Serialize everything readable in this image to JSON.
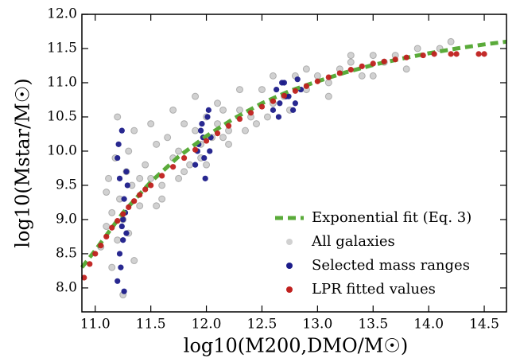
{
  "chart_data": {
    "type": "scatter",
    "x_label": "log10(M200,DMO/M☉)",
    "y_label": "log10(Mstar/M☉)",
    "xlim": [
      10.88,
      14.7
    ],
    "ylim": [
      7.65,
      12.0
    ],
    "xticks": [
      {
        "value": 11.0,
        "label": "11.0"
      },
      11.5,
      {
        "value": 12.0,
        "label": "12.0"
      },
      12.5,
      {
        "value": 13.0,
        "label": "13.0"
      },
      13.5,
      {
        "value": 14.0,
        "label": "14.0"
      },
      14.5
    ],
    "yticks": [
      {
        "value": 8.0,
        "label": "8.0"
      },
      8.5,
      {
        "value": 9.0,
        "label": "9.0"
      },
      9.5,
      {
        "value": 10.0,
        "label": "10.0"
      },
      10.5,
      {
        "value": 11.0,
        "label": "11.0"
      },
      11.5,
      {
        "value": 12.0,
        "label": "12.0"
      }
    ],
    "legend": "lower right",
    "series": [
      {
        "name": "Exponential fit (Eq. 3)",
        "type": "line",
        "color": "#5aab3a",
        "x": [
          10.88,
          11.0,
          11.25,
          11.5,
          11.75,
          12.0,
          12.25,
          12.5,
          12.75,
          13.0,
          13.25,
          13.5,
          13.75,
          14.0,
          14.25,
          14.5,
          14.7
        ],
        "values": [
          8.3,
          8.55,
          9.1,
          9.55,
          9.92,
          10.22,
          10.48,
          10.7,
          10.88,
          11.02,
          11.15,
          11.26,
          11.35,
          11.43,
          11.5,
          11.56,
          11.6
        ]
      },
      {
        "name": "All galaxies",
        "type": "scatter",
        "color": "#9a9a9a",
        "x": [
          11.05,
          11.1,
          11.12,
          11.15,
          11.18,
          11.2,
          11.22,
          11.25,
          11.28,
          11.3,
          11.33,
          11.35,
          11.4,
          11.45,
          11.5,
          11.55,
          11.6,
          11.65,
          11.7,
          11.75,
          11.8,
          11.85,
          11.9,
          11.95,
          12.0,
          12.05,
          12.1,
          12.15,
          12.2,
          12.3,
          12.4,
          12.5,
          12.6,
          12.7,
          12.8,
          12.9,
          13.0,
          13.1,
          13.2,
          13.3,
          13.4,
          13.5,
          13.6,
          13.7,
          13.8,
          13.9,
          14.1,
          14.2,
          11.15,
          11.2,
          11.3,
          11.4,
          11.5,
          11.6,
          11.7,
          11.8,
          11.9,
          12.0,
          12.1,
          12.2,
          12.3,
          12.45,
          12.6,
          12.75,
          12.9,
          13.1,
          13.3,
          13.5,
          11.1,
          11.25,
          11.35,
          11.55,
          11.75,
          11.95,
          12.15,
          12.35,
          12.55
        ],
        "values": [
          8.6,
          8.9,
          9.6,
          8.3,
          9.9,
          8.7,
          9.3,
          7.9,
          9.7,
          8.8,
          9.5,
          10.3,
          9.2,
          9.8,
          9.6,
          10.1,
          9.5,
          10.2,
          9.9,
          10.0,
          10.4,
          9.8,
          10.3,
          10.1,
          10.5,
          10.2,
          10.4,
          10.6,
          10.3,
          10.6,
          10.5,
          10.9,
          10.7,
          10.8,
          11.1,
          10.9,
          11.1,
          11.0,
          11.2,
          11.3,
          11.1,
          11.4,
          11.3,
          11.4,
          11.2,
          11.5,
          11.5,
          11.6,
          9.1,
          10.5,
          10.0,
          9.6,
          10.4,
          9.3,
          10.6,
          9.7,
          10.8,
          9.8,
          10.7,
          10.1,
          10.9,
          10.4,
          11.1,
          10.6,
          11.2,
          10.8,
          11.4,
          11.1,
          9.4,
          9.0,
          8.4,
          9.2,
          9.6,
          9.9,
          10.2,
          10.3,
          10.5
        ]
      },
      {
        "name": "Selected mass ranges",
        "type": "scatter",
        "color": "#1c1c8a",
        "x": [
          11.2,
          11.22,
          11.24,
          11.26,
          11.28,
          11.21,
          11.23,
          11.25,
          11.27,
          11.29,
          11.2,
          11.24,
          11.26,
          11.28,
          11.22,
          11.25,
          11.9,
          11.93,
          11.96,
          11.99,
          12.02,
          12.04,
          11.92,
          11.95,
          11.98,
          12.01,
          12.03,
          11.97,
          12.6,
          12.63,
          12.66,
          12.7,
          12.74,
          12.78,
          12.82,
          12.85,
          12.65,
          12.72,
          12.8,
          12.68
        ],
        "values": [
          8.1,
          8.5,
          8.9,
          9.3,
          9.7,
          10.1,
          8.3,
          8.7,
          9.1,
          9.5,
          9.9,
          10.3,
          7.95,
          8.8,
          9.6,
          9.0,
          9.8,
          10.1,
          10.4,
          9.6,
          10.6,
          10.2,
          10.0,
          10.3,
          9.9,
          10.5,
          10.0,
          10.2,
          10.6,
          10.9,
          10.7,
          11.0,
          10.8,
          10.6,
          11.05,
          10.9,
          10.5,
          10.8,
          10.7,
          11.0
        ]
      },
      {
        "name": "LPR fitted values",
        "type": "scatter",
        "color": "#c0201e",
        "x": [
          10.9,
          10.95,
          11.0,
          11.05,
          11.1,
          11.15,
          11.2,
          11.25,
          11.3,
          11.35,
          11.4,
          11.45,
          11.5,
          11.6,
          11.7,
          11.8,
          11.9,
          12.0,
          12.1,
          12.2,
          12.3,
          12.4,
          12.5,
          12.6,
          12.7,
          12.8,
          12.9,
          13.0,
          13.1,
          13.2,
          13.3,
          13.4,
          13.5,
          13.6,
          13.7,
          13.8,
          13.95,
          14.05,
          14.2,
          14.25,
          14.45,
          14.5
        ],
        "values": [
          8.15,
          8.35,
          8.5,
          8.62,
          8.75,
          8.88,
          8.98,
          9.08,
          9.18,
          9.27,
          9.36,
          9.44,
          9.5,
          9.64,
          9.77,
          9.9,
          10.02,
          10.15,
          10.26,
          10.37,
          10.47,
          10.56,
          10.65,
          10.73,
          10.81,
          10.88,
          10.95,
          11.02,
          11.08,
          11.14,
          11.19,
          11.24,
          11.28,
          11.31,
          11.34,
          11.37,
          11.4,
          11.42,
          11.42,
          11.42,
          11.42,
          11.42
        ]
      }
    ]
  }
}
